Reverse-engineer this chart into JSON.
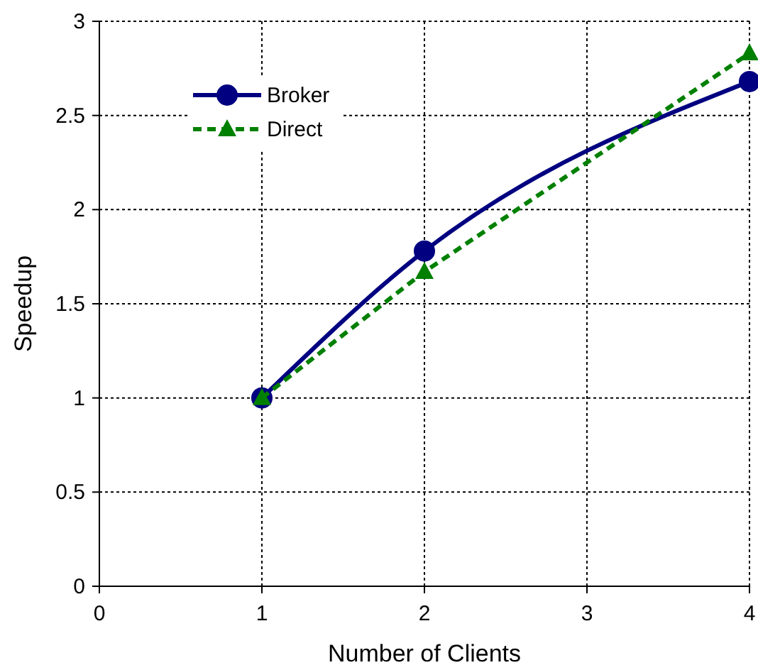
{
  "chart_data": {
    "type": "line",
    "xlabel": "Number of Clients",
    "ylabel": "Speedup",
    "xlim": [
      0,
      4
    ],
    "xticks": [
      0,
      1,
      2,
      3,
      4
    ],
    "ylim": [
      0,
      3
    ],
    "yticks": [
      0,
      0.5,
      1,
      1.5,
      2,
      2.5,
      3
    ],
    "grid": true,
    "legend": "top left",
    "x": [
      1,
      2,
      4
    ],
    "series": [
      {
        "name": "Broker",
        "color": "#000080",
        "values": [
          1,
          1.78,
          2.68
        ],
        "marker": "circle",
        "line_style": "solid"
      },
      {
        "name": "Direct",
        "color": "#008000",
        "values": [
          1,
          1.67,
          2.83
        ],
        "marker": "triangle",
        "line_style": "dashed"
      }
    ]
  }
}
